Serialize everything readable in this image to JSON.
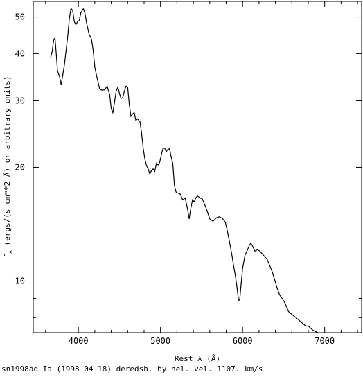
{
  "chart_data": {
    "type": "line",
    "title": "",
    "xlabel": "Rest λ (Å)",
    "ylabel": "f_λ (ergs/(s cm**2 Å) or arbitrary units)",
    "ylabel_symbol": "f",
    "ylabel_subscript": "λ",
    "ylabel_rest": " (ergs/(s cm**2 Å) or arbitrary units)",
    "xlim": [
      3450,
      7450
    ],
    "ylim": [
      7.3,
      55
    ],
    "yscale": "log",
    "grid": false,
    "legend": "none",
    "x_ticks_major": [
      4000,
      5000,
      6000,
      7000
    ],
    "y_ticks_labeled": [
      10,
      20,
      30,
      40,
      50
    ],
    "series": [
      {
        "color": "#000000",
        "points": [
          [
            3660,
            38.9
          ],
          [
            3680,
            40.5
          ],
          [
            3700,
            43.6
          ],
          [
            3715,
            44.0
          ],
          [
            3730,
            40.0
          ],
          [
            3745,
            36.0
          ],
          [
            3770,
            34.8
          ],
          [
            3790,
            33.1
          ],
          [
            3810,
            35.2
          ],
          [
            3830,
            37.4
          ],
          [
            3850,
            40.8
          ],
          [
            3870,
            44.5
          ],
          [
            3890,
            49.5
          ],
          [
            3910,
            52.7
          ],
          [
            3930,
            52.0
          ],
          [
            3950,
            48.6
          ],
          [
            3970,
            47.7
          ],
          [
            3990,
            48.6
          ],
          [
            4010,
            48.9
          ],
          [
            4030,
            51.3
          ],
          [
            4060,
            52.6
          ],
          [
            4080,
            51.1
          ],
          [
            4100,
            48.2
          ],
          [
            4130,
            45.0
          ],
          [
            4160,
            43.7
          ],
          [
            4180,
            40.8
          ],
          [
            4200,
            36.8
          ],
          [
            4230,
            34.3
          ],
          [
            4260,
            32.2
          ],
          [
            4290,
            32.0
          ],
          [
            4320,
            32.1
          ],
          [
            4350,
            32.8
          ],
          [
            4380,
            31.2
          ],
          [
            4400,
            28.6
          ],
          [
            4420,
            27.9
          ],
          [
            4440,
            29.8
          ],
          [
            4460,
            31.8
          ],
          [
            4480,
            32.6
          ],
          [
            4500,
            31.4
          ],
          [
            4520,
            30.4
          ],
          [
            4540,
            30.6
          ],
          [
            4560,
            31.8
          ],
          [
            4580,
            32.8
          ],
          [
            4600,
            32.6
          ],
          [
            4620,
            29.4
          ],
          [
            4640,
            27.3
          ],
          [
            4660,
            27.7
          ],
          [
            4680,
            27.9
          ],
          [
            4700,
            26.6
          ],
          [
            4720,
            26.9
          ],
          [
            4750,
            26.4
          ],
          [
            4770,
            24.6
          ],
          [
            4790,
            22.4
          ],
          [
            4810,
            21.0
          ],
          [
            4830,
            20.2
          ],
          [
            4850,
            19.8
          ],
          [
            4870,
            19.2
          ],
          [
            4890,
            19.6
          ],
          [
            4910,
            19.8
          ],
          [
            4930,
            19.5
          ],
          [
            4950,
            20.5
          ],
          [
            4970,
            20.3
          ],
          [
            4990,
            20.6
          ],
          [
            5010,
            21.6
          ],
          [
            5030,
            22.4
          ],
          [
            5050,
            22.5
          ],
          [
            5070,
            22.0
          ],
          [
            5090,
            22.3
          ],
          [
            5110,
            22.4
          ],
          [
            5130,
            21.3
          ],
          [
            5150,
            20.5
          ],
          [
            5170,
            17.9
          ],
          [
            5190,
            17.2
          ],
          [
            5210,
            17.1
          ],
          [
            5240,
            17.0
          ],
          [
            5270,
            16.4
          ],
          [
            5300,
            16.6
          ],
          [
            5330,
            15.5
          ],
          [
            5350,
            14.6
          ],
          [
            5370,
            15.6
          ],
          [
            5390,
            16.4
          ],
          [
            5410,
            16.2
          ],
          [
            5430,
            16.6
          ],
          [
            5450,
            16.8
          ],
          [
            5480,
            16.6
          ],
          [
            5510,
            16.5
          ],
          [
            5540,
            15.9
          ],
          [
            5570,
            15.3
          ],
          [
            5600,
            14.6
          ],
          [
            5640,
            14.4
          ],
          [
            5680,
            14.7
          ],
          [
            5720,
            14.8
          ],
          [
            5760,
            14.6
          ],
          [
            5790,
            14.3
          ],
          [
            5820,
            13.4
          ],
          [
            5850,
            12.4
          ],
          [
            5870,
            11.7
          ],
          [
            5890,
            11.0
          ],
          [
            5910,
            10.4
          ],
          [
            5930,
            9.7
          ],
          [
            5950,
            8.9
          ],
          [
            5965,
            8.9
          ],
          [
            5980,
            9.7
          ],
          [
            6000,
            10.8
          ],
          [
            6030,
            11.7
          ],
          [
            6060,
            12.1
          ],
          [
            6080,
            12.4
          ],
          [
            6100,
            12.6
          ],
          [
            6120,
            12.4
          ],
          [
            6150,
            12.0
          ],
          [
            6180,
            12.1
          ],
          [
            6210,
            12.0
          ],
          [
            6240,
            11.8
          ],
          [
            6270,
            11.6
          ],
          [
            6300,
            11.4
          ],
          [
            6330,
            11.0
          ],
          [
            6360,
            10.6
          ],
          [
            6390,
            10.1
          ],
          [
            6420,
            9.6
          ],
          [
            6450,
            9.2
          ],
          [
            6480,
            9.0
          ],
          [
            6510,
            8.8
          ],
          [
            6540,
            8.5
          ],
          [
            6560,
            8.3
          ],
          [
            6590,
            8.2
          ],
          [
            6620,
            8.1
          ],
          [
            6650,
            8.0
          ],
          [
            6680,
            7.9
          ],
          [
            6710,
            7.8
          ],
          [
            6740,
            7.7
          ],
          [
            6770,
            7.6
          ],
          [
            6800,
            7.6
          ],
          [
            6830,
            7.5
          ],
          [
            6860,
            7.4
          ],
          [
            6890,
            7.35
          ],
          [
            6920,
            7.3
          ]
        ]
      }
    ]
  },
  "caption": "sn1998aq Ia (1998 04 18) deredsh. by hel. vel.  1107. km/s"
}
